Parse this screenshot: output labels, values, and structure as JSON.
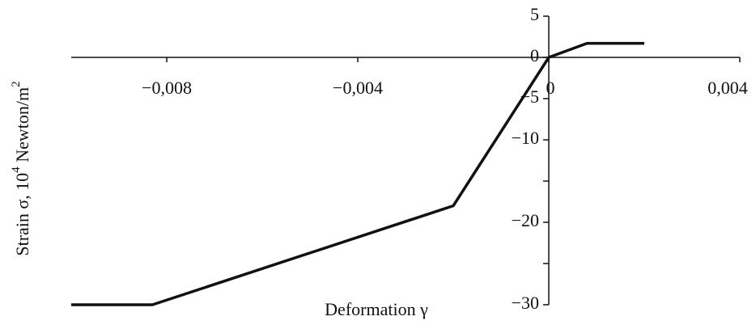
{
  "chart_data": {
    "type": "line",
    "x_label": "Deformation γ",
    "y_label": [
      "Strain σ, 10",
      "4",
      " Newton/m",
      "2"
    ],
    "x": [
      -0.01,
      -0.0083,
      -0.002,
      0,
      0.0008,
      0.002
    ],
    "series": [
      {
        "color": "#111111",
        "values": [
          -30,
          -30,
          -18,
          0,
          1.7,
          1.7
        ]
      }
    ],
    "xlim": [
      -0.01,
      0.004
    ],
    "xticks": [
      {
        "value": -0.008,
        "label": "−0,008"
      },
      {
        "value": -0.004,
        "label": "−0,004"
      },
      0,
      {
        "value": 0.004,
        "label": "0,004"
      }
    ],
    "ylim": [
      -30,
      5
    ],
    "yticks": [
      5,
      0,
      {
        "value": -5,
        "label": "−5"
      },
      {
        "value": -10,
        "label": "−10"
      },
      {
        "value": -20,
        "label": "−20"
      },
      {
        "value": -30,
        "label": "−30"
      }
    ],
    "yminor_ticks": [
      -15,
      -25
    ]
  }
}
